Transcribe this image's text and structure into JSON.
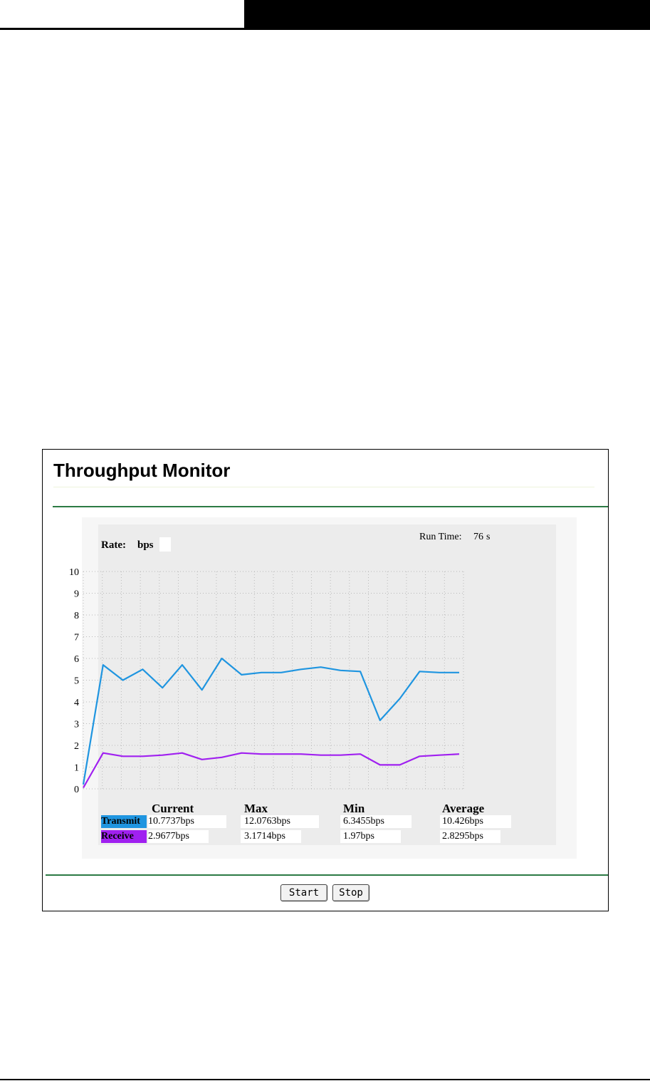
{
  "panel": {
    "title": "Throughput Monitor",
    "rate_label": "Rate:",
    "rate_unit": "bps",
    "runtime_label": "Run Time:",
    "runtime_value": "76",
    "runtime_unit": "s"
  },
  "stats": {
    "columns": [
      "Current",
      "Max",
      "Min",
      "Average"
    ],
    "rows": [
      {
        "label": "Transmit",
        "color": "#1f95e0",
        "current": "10.7737bps",
        "max": "12.0763bps",
        "min": "6.3455bps",
        "average": "10.426bps"
      },
      {
        "label": "Receive",
        "color": "#a020f0",
        "current": "2.9677bps",
        "max": "3.1714bps",
        "min": "1.97bps",
        "average": "2.8295bps"
      }
    ]
  },
  "buttons": {
    "start": "Start",
    "stop": "Stop"
  },
  "chart_data": {
    "type": "line",
    "ylim": [
      0,
      10
    ],
    "yticks": [
      "0",
      "1",
      "2",
      "3",
      "4",
      "5",
      "6",
      "7",
      "8",
      "9",
      "10"
    ],
    "grid": true,
    "x": [
      0,
      1,
      2,
      3,
      4,
      5,
      6,
      7,
      8,
      9,
      10,
      11,
      12,
      13,
      14,
      15,
      16,
      17,
      18,
      19
    ],
    "series": [
      {
        "name": "Transmit",
        "color": "#1f95e0",
        "values": [
          0.2,
          5.7,
          5.0,
          5.5,
          4.65,
          5.7,
          4.55,
          6.0,
          5.25,
          5.35,
          5.35,
          5.5,
          5.6,
          5.45,
          5.4,
          3.15,
          4.15,
          5.4,
          5.35,
          5.35
        ]
      },
      {
        "name": "Receive",
        "color": "#a020f0",
        "values": [
          0.05,
          1.65,
          1.5,
          1.5,
          1.55,
          1.65,
          1.35,
          1.45,
          1.65,
          1.6,
          1.6,
          1.6,
          1.55,
          1.55,
          1.6,
          1.1,
          1.1,
          1.5,
          1.55,
          1.6
        ]
      }
    ]
  }
}
